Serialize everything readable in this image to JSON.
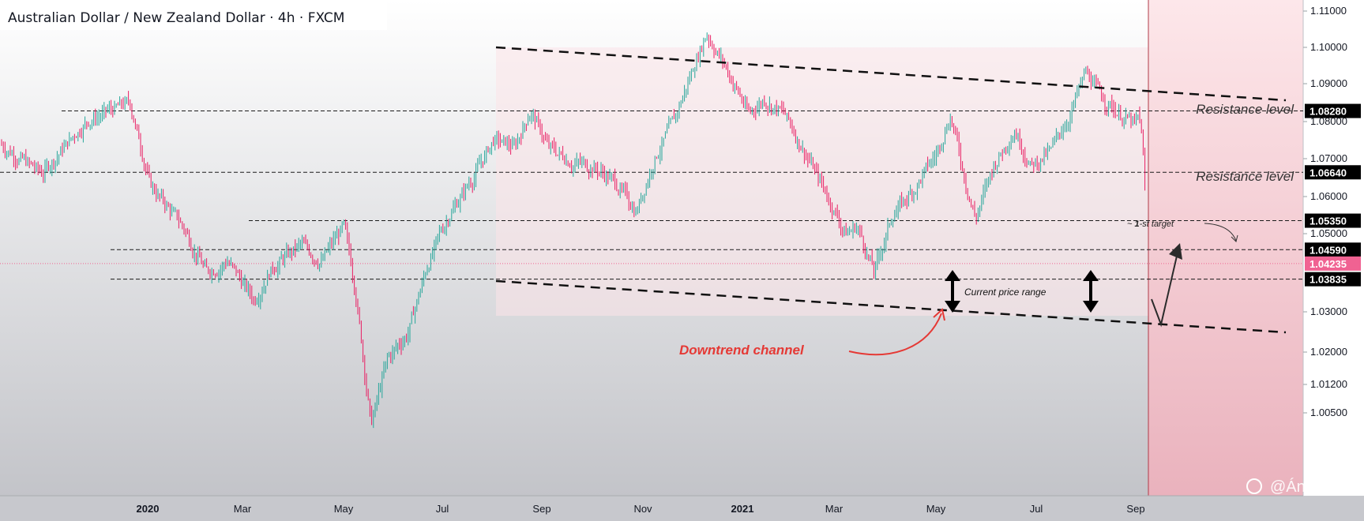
{
  "header": {
    "title": "Australian Dollar / New Zealand Dollar · 4h · FXCM"
  },
  "watermark": {
    "icon": "tradingview-share-icon",
    "handle": "@ÁnhNg"
  },
  "colors": {
    "up_candle": "#26a69a",
    "down_candle": "#e91e63",
    "current_price_badge": "#f06292",
    "level_badge": "#000000",
    "downtrend_annotation": "#e53935",
    "forecast_zone": "#f8c9d2"
  },
  "chart_data": {
    "type": "candlestick",
    "title": "Australian Dollar / New Zealand Dollar · 4h · FXCM",
    "x_axis": {
      "ticks": [
        "2020",
        "Mar",
        "May",
        "Jul",
        "Sep",
        "Nov",
        "2021",
        "Mar",
        "May",
        "Jul",
        "Sep"
      ],
      "bold_ticks": [
        "2020",
        "2021"
      ],
      "range": [
        "2019-11",
        "2021-10"
      ]
    },
    "y_axis": {
      "ticks": [
        1.11,
        1.1,
        1.09,
        1.08,
        1.07,
        1.06,
        1.05,
        1.03,
        1.02,
        1.012,
        1.005
      ],
      "tick_labels": [
        "1.11000",
        "1.10000",
        "1.09000",
        "1.08000",
        "1.07000",
        "1.06000",
        "1.05000",
        "1.03000",
        "1.02000",
        "1.01200",
        "1.00500"
      ],
      "range": [
        0.999,
        1.111
      ],
      "position": "right"
    },
    "price_path": [
      {
        "date": "2019-11-01",
        "price": 1.074
      },
      {
        "date": "2019-11-20",
        "price": 1.066
      },
      {
        "date": "2019-12-10",
        "price": 1.08
      },
      {
        "date": "2019-12-30",
        "price": 1.085
      },
      {
        "date": "2020-01-10",
        "price": 1.063
      },
      {
        "date": "2020-01-28",
        "price": 1.052
      },
      {
        "date": "2020-02-10",
        "price": 1.04
      },
      {
        "date": "2020-02-22",
        "price": 1.043
      },
      {
        "date": "2020-03-08",
        "price": 1.033
      },
      {
        "date": "2020-03-18",
        "price": 1.041
      },
      {
        "date": "2020-04-05",
        "price": 1.047
      },
      {
        "date": "2020-04-18",
        "price": 1.043
      },
      {
        "date": "2020-05-01",
        "price": 1.052
      },
      {
        "date": "2020-05-08",
        "price": 1.037
      },
      {
        "date": "2020-05-18",
        "price": 1.002
      },
      {
        "date": "2020-05-28",
        "price": 1.018
      },
      {
        "date": "2020-06-10",
        "price": 1.025
      },
      {
        "date": "2020-06-22",
        "price": 1.042
      },
      {
        "date": "2020-07-05",
        "price": 1.055
      },
      {
        "date": "2020-07-20",
        "price": 1.065
      },
      {
        "date": "2020-08-02",
        "price": 1.075
      },
      {
        "date": "2020-08-15",
        "price": 1.073
      },
      {
        "date": "2020-08-25",
        "price": 1.083
      },
      {
        "date": "2020-09-05",
        "price": 1.073
      },
      {
        "date": "2020-09-20",
        "price": 1.069
      },
      {
        "date": "2020-10-02",
        "price": 1.068
      },
      {
        "date": "2020-10-15",
        "price": 1.064
      },
      {
        "date": "2020-10-28",
        "price": 1.056
      },
      {
        "date": "2020-11-08",
        "price": 1.07
      },
      {
        "date": "2020-11-20",
        "price": 1.08
      },
      {
        "date": "2020-12-05",
        "price": 1.098
      },
      {
        "date": "2020-12-10",
        "price": 1.104
      },
      {
        "date": "2020-12-20",
        "price": 1.096
      },
      {
        "date": "2021-01-05",
        "price": 1.082
      },
      {
        "date": "2021-01-15",
        "price": 1.086
      },
      {
        "date": "2021-01-28",
        "price": 1.082
      },
      {
        "date": "2021-02-10",
        "price": 1.072
      },
      {
        "date": "2021-02-25",
        "price": 1.06
      },
      {
        "date": "2021-03-08",
        "price": 1.05
      },
      {
        "date": "2021-03-15",
        "price": 1.052
      },
      {
        "date": "2021-03-25",
        "price": 1.04
      },
      {
        "date": "2021-04-05",
        "price": 1.055
      },
      {
        "date": "2021-04-18",
        "price": 1.062
      },
      {
        "date": "2021-05-01",
        "price": 1.071
      },
      {
        "date": "2021-05-10",
        "price": 1.082
      },
      {
        "date": "2021-05-18",
        "price": 1.066
      },
      {
        "date": "2021-05-25",
        "price": 1.054
      },
      {
        "date": "2021-06-05",
        "price": 1.068
      },
      {
        "date": "2021-06-18",
        "price": 1.078
      },
      {
        "date": "2021-06-28",
        "price": 1.068
      },
      {
        "date": "2021-07-10",
        "price": 1.072
      },
      {
        "date": "2021-07-22",
        "price": 1.082
      },
      {
        "date": "2021-08-01",
        "price": 1.093
      },
      {
        "date": "2021-08-10",
        "price": 1.087
      },
      {
        "date": "2021-08-22",
        "price": 1.082
      },
      {
        "date": "2021-09-01",
        "price": 1.079
      },
      {
        "date": "2021-09-12",
        "price": 1.081
      },
      {
        "date": "2021-09-25",
        "price": 1.076
      },
      {
        "date": "2021-10-05",
        "price": 1.061
      },
      {
        "date": "2021-10-15",
        "price": 1.076
      },
      {
        "date": "2021-10-25",
        "price": 1.078
      },
      {
        "date": "2021-11-05",
        "price": 1.074
      },
      {
        "date": "2021-11-18",
        "price": 1.068
      },
      {
        "date": "2021-11-28",
        "price": 1.053
      },
      {
        "date": "2021-12-08",
        "price": 1.049
      },
      {
        "date": "2021-12-18",
        "price": 1.045
      },
      {
        "date": "2021-12-28",
        "price": 1.042
      },
      {
        "date": "2022-01-08",
        "price": 1.04
      },
      {
        "date": "2022-01-15",
        "price": 1.042
      }
    ],
    "current_price": 1.04235,
    "levels": [
      {
        "price": 1.0828,
        "label": "1.08280",
        "annotation": "Resistance level"
      },
      {
        "price": 1.0664,
        "label": "1.06640",
        "annotation": "Resistance level"
      },
      {
        "price": 1.0535,
        "label": "1.05350",
        "annotation": ""
      },
      {
        "price": 1.0459,
        "label": "1.04590",
        "annotation": ""
      },
      {
        "price": 1.03835,
        "label": "1.03835",
        "annotation": ""
      }
    ],
    "current_price_label": "1.04235",
    "annotations": {
      "resistance_upper": "Resistance level",
      "resistance_lower": "Resistance level",
      "current_range": "Current price range",
      "target_prefix": "~ ",
      "target_bold": "1",
      "target_suffix": "-st target",
      "downtrend": "Downtrend channel"
    },
    "channel": {
      "upper": [
        {
          "date": "2020-08-12",
          "price": 1.101
        },
        {
          "date": "2021-10-18",
          "price": 1.0878
        }
      ],
      "lower": [
        {
          "date": "2020-08-12",
          "price": 1.0459
        },
        {
          "date": "2021-10-18",
          "price": 1.0335
        }
      ]
    },
    "grid": false,
    "legend": "none"
  }
}
